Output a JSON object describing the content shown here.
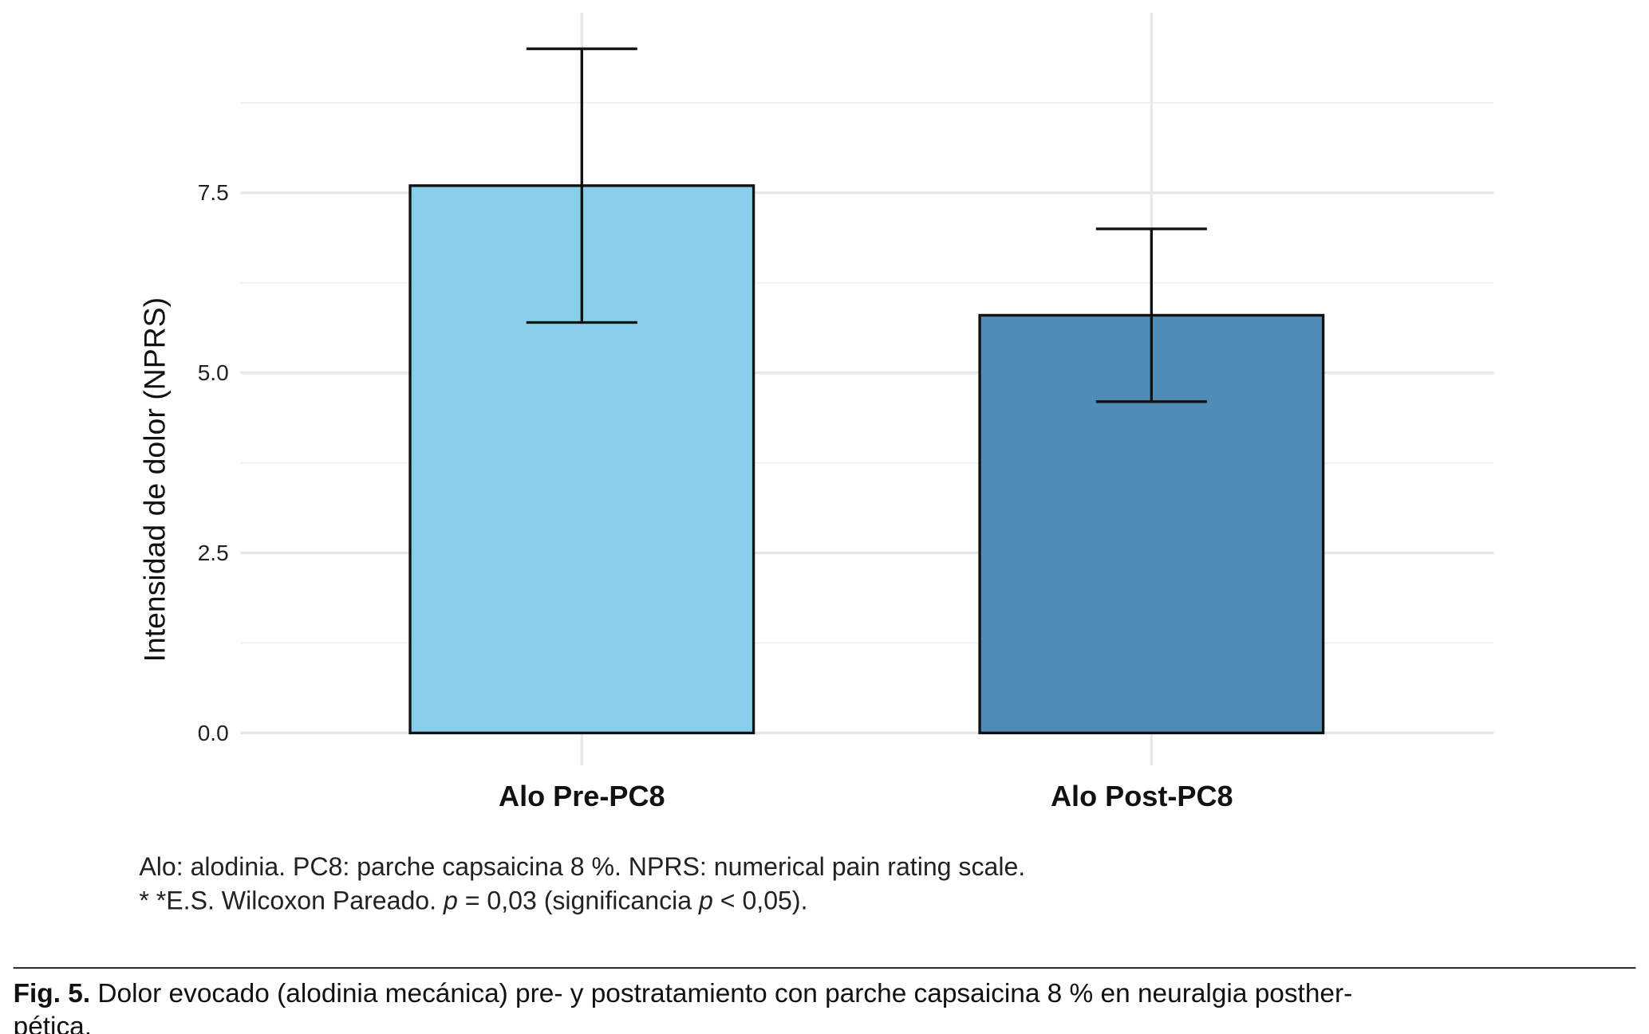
{
  "chart_data": {
    "type": "bar",
    "categories": [
      "Alo Pre-PC8",
      "Alo Post-PC8"
    ],
    "values": [
      7.6,
      5.8
    ],
    "error_bars": [
      {
        "low": 5.7,
        "high": 9.5
      },
      {
        "low": 4.6,
        "high": 7.0
      }
    ],
    "colors": [
      "#87CEEB",
      "#4F8DB8"
    ],
    "xlabel": "",
    "ylabel": "Intensidad de dolor (NPRS)",
    "ylim": [
      -0.45,
      10
    ],
    "yticks": [
      "0.0",
      "2.5",
      "5.0",
      "7.5"
    ],
    "ytick_values": [
      0,
      2.5,
      5,
      7.5
    ],
    "minor_grid": [
      1.25,
      3.75,
      6.25,
      8.75
    ],
    "grid": true
  },
  "notes": {
    "line1": "Alo: alodinia. PC8: parche capsaicina 8 %. NPRS: numerical pain rating scale.",
    "line2_a": "* *E.S. Wilcoxon Pareado. ",
    "line2_p1": "p",
    "line2_b": " = 0,03 (significancia ",
    "line2_p2": "p",
    "line2_c": " < 0,05)."
  },
  "figure_caption": {
    "label": "Fig. 5.",
    "line1": " Dolor evocado (alodinia mecánica)  pre- y postratamiento con parche capsaicina 8 % en neuralgia posther-",
    "line2": "pética."
  }
}
